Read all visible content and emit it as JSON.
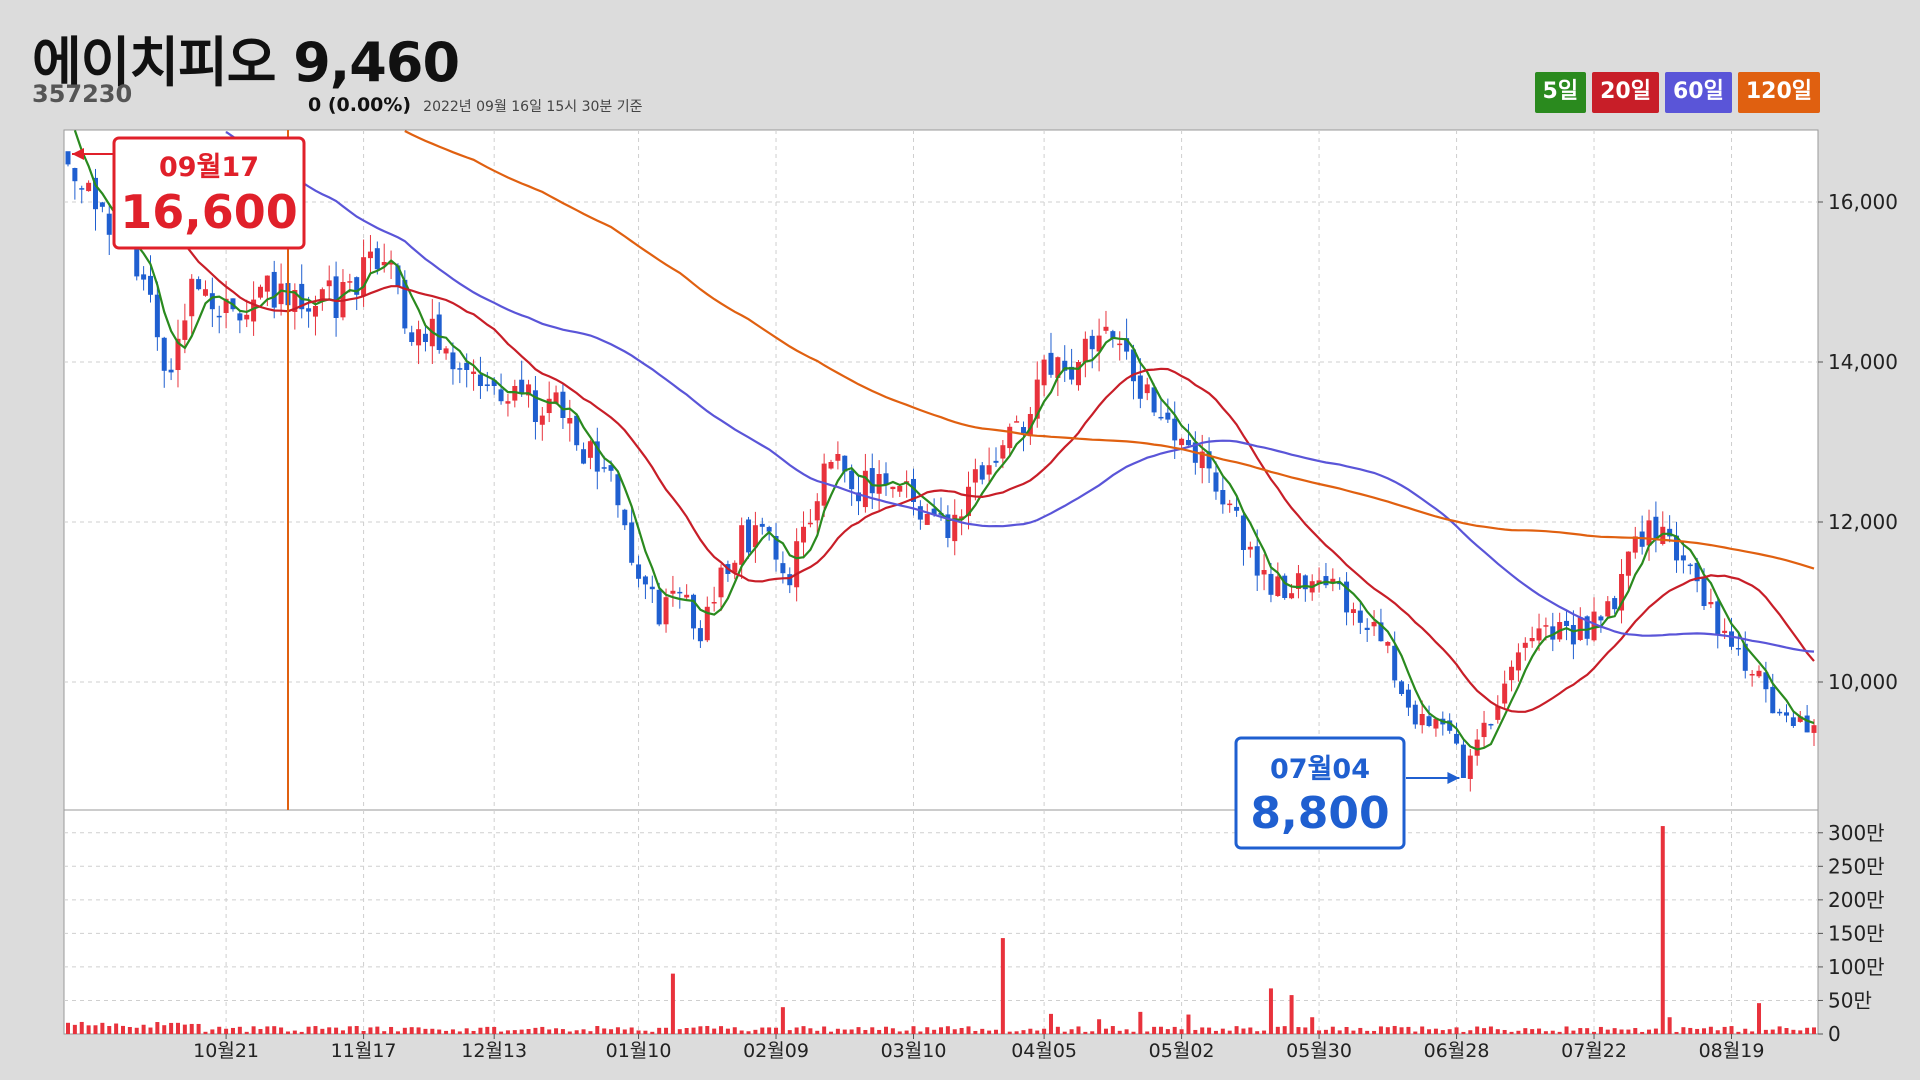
{
  "header": {
    "name": "에이치피오",
    "price": "9,460",
    "code": "357230",
    "change": "0 (0.00%)",
    "as_of": "2022년 09월 16일 15시 30분 기준"
  },
  "legend": [
    {
      "label": "5일",
      "color": "#2a8a1e"
    },
    {
      "label": "20일",
      "color": "#c81e28"
    },
    {
      "label": "60일",
      "color": "#5a55d8"
    },
    {
      "label": "120일",
      "color": "#e06010"
    }
  ],
  "chart_data": {
    "type": "candlestick",
    "price_ylim": [
      8400,
      16900
    ],
    "price_yticks": [
      10000,
      12000,
      14000,
      16000
    ],
    "price_ytick_labels": [
      "10,000",
      "12,000",
      "14,000",
      "16,000"
    ],
    "volume_ylim": [
      0,
      3250000
    ],
    "volume_yticks": [
      0,
      500000,
      1000000,
      1500000,
      2000000,
      2500000,
      3000000
    ],
    "volume_ytick_labels": [
      "0",
      "50만",
      "100만",
      "150만",
      "200만",
      "250만",
      "300만"
    ],
    "x_tick_labels": [
      {
        "label": "10월21",
        "day": 23
      },
      {
        "label": "11월17",
        "day": 43
      },
      {
        "label": "12월13",
        "day": 62
      },
      {
        "label": "01월10",
        "day": 83
      },
      {
        "label": "02월09",
        "day": 103
      },
      {
        "label": "03월10",
        "day": 123
      },
      {
        "label": "04월05",
        "day": 142
      },
      {
        "label": "05월02",
        "day": 162
      },
      {
        "label": "05월30",
        "day": 182
      },
      {
        "label": "06월28",
        "day": 202
      },
      {
        "label": "07월22",
        "day": 222
      },
      {
        "label": "08월19",
        "day": 242
      }
    ],
    "high_marker": {
      "date": "09월17",
      "value_label": "16,600",
      "value": 16600,
      "day": 0
    },
    "low_marker": {
      "date": "07월04",
      "value_label": "8,800",
      "value": 8800,
      "day": 203
    },
    "anchors": [
      [
        0,
        16500
      ],
      [
        3,
        16150
      ],
      [
        8,
        15600
      ],
      [
        12,
        14800
      ],
      [
        14,
        13800
      ],
      [
        16,
        14300
      ],
      [
        18,
        14900
      ],
      [
        21,
        14700
      ],
      [
        24,
        14700
      ],
      [
        27,
        14900
      ],
      [
        32,
        14850
      ],
      [
        36,
        14700
      ],
      [
        40,
        14850
      ],
      [
        44,
        15300
      ],
      [
        47,
        15200
      ],
      [
        50,
        14300
      ],
      [
        53,
        14500
      ],
      [
        56,
        14000
      ],
      [
        60,
        13900
      ],
      [
        64,
        13600
      ],
      [
        68,
        13450
      ],
      [
        71,
        13500
      ],
      [
        75,
        12900
      ],
      [
        79,
        12500
      ],
      [
        82,
        11600
      ],
      [
        86,
        10900
      ],
      [
        89,
        11050
      ],
      [
        92,
        10700
      ],
      [
        95,
        11300
      ],
      [
        98,
        11800
      ],
      [
        102,
        11900
      ],
      [
        105,
        11350
      ],
      [
        109,
        12300
      ],
      [
        112,
        12950
      ],
      [
        115,
        12400
      ],
      [
        119,
        12550
      ],
      [
        122,
        12300
      ],
      [
        125,
        11900
      ],
      [
        129,
        11950
      ],
      [
        132,
        12600
      ],
      [
        135,
        12900
      ],
      [
        139,
        13300
      ],
      [
        142,
        13900
      ],
      [
        146,
        14000
      ],
      [
        150,
        14400
      ],
      [
        153,
        14200
      ],
      [
        156,
        13600
      ],
      [
        160,
        13250
      ],
      [
        163,
        13000
      ],
      [
        166,
        12700
      ],
      [
        170,
        12100
      ],
      [
        173,
        11300
      ],
      [
        176,
        11150
      ],
      [
        179,
        11300
      ],
      [
        183,
        11200
      ],
      [
        186,
        11000
      ],
      [
        189,
        10800
      ],
      [
        192,
        10400
      ],
      [
        195,
        9600
      ],
      [
        198,
        9550
      ],
      [
        201,
        9400
      ],
      [
        203,
        8950
      ],
      [
        206,
        9400
      ],
      [
        209,
        9900
      ],
      [
        212,
        10500
      ],
      [
        215,
        10700
      ],
      [
        219,
        10600
      ],
      [
        222,
        10700
      ],
      [
        225,
        11050
      ],
      [
        227,
        11700
      ],
      [
        230,
        11850
      ],
      [
        233,
        11700
      ],
      [
        236,
        11600
      ],
      [
        239,
        10900
      ],
      [
        242,
        10500
      ],
      [
        245,
        10100
      ],
      [
        248,
        9700
      ],
      [
        251,
        9450
      ],
      [
        254,
        9460
      ]
    ],
    "series": [
      {
        "name": "5일",
        "period": 5,
        "color": "#2a8a1e"
      },
      {
        "name": "20일",
        "period": 20,
        "color": "#c81e28"
      },
      {
        "name": "60일",
        "period": 60,
        "color": "#5a55d8"
      },
      {
        "name": "120일",
        "period": 120,
        "color": "#e06010"
      }
    ],
    "candle_up_color": "#e8323c",
    "candle_down_color": "#1f5fd0"
  }
}
